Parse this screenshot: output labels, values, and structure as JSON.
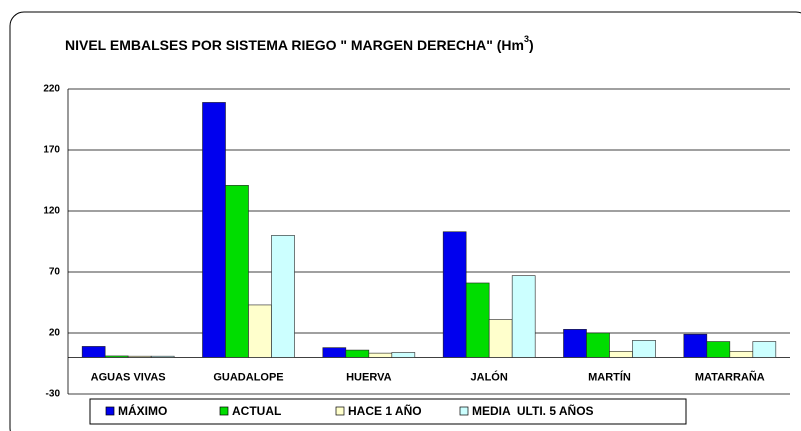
{
  "chart_data": {
    "type": "bar",
    "title": "NIVEL EMBALSES POR SISTEMA  RIEGO \" MARGEN DERECHA\" (Hm",
    "title_superscript": "3",
    "title_suffix": ")",
    "categories": [
      "AGUAS VIVAS",
      "GUADALOPE",
      "HUERVA",
      "JALÓN",
      "MARTÍN",
      "MATARRAÑA"
    ],
    "series": [
      {
        "name": "MÁXIMO",
        "color": "#0000ee",
        "values": [
          9,
          209,
          8,
          103,
          23,
          19
        ]
      },
      {
        "name": "ACTUAL",
        "color": "#00dd00",
        "values": [
          1.2,
          141,
          6,
          61,
          20,
          13
        ]
      },
      {
        "name": "HACE 1 AÑO",
        "color": "#ffffcc",
        "values": [
          1,
          43,
          3.5,
          31,
          5,
          5
        ]
      },
      {
        "name": "MEDIA  ULTI. 5 AÑOS",
        "color": "#ccffff",
        "values": [
          1,
          100,
          4,
          67,
          14,
          13
        ]
      }
    ],
    "ylim": [
      -30,
      220
    ],
    "yticks": [
      -30,
      20,
      70,
      120,
      170,
      220
    ],
    "grid": true,
    "legend": "bottom"
  }
}
